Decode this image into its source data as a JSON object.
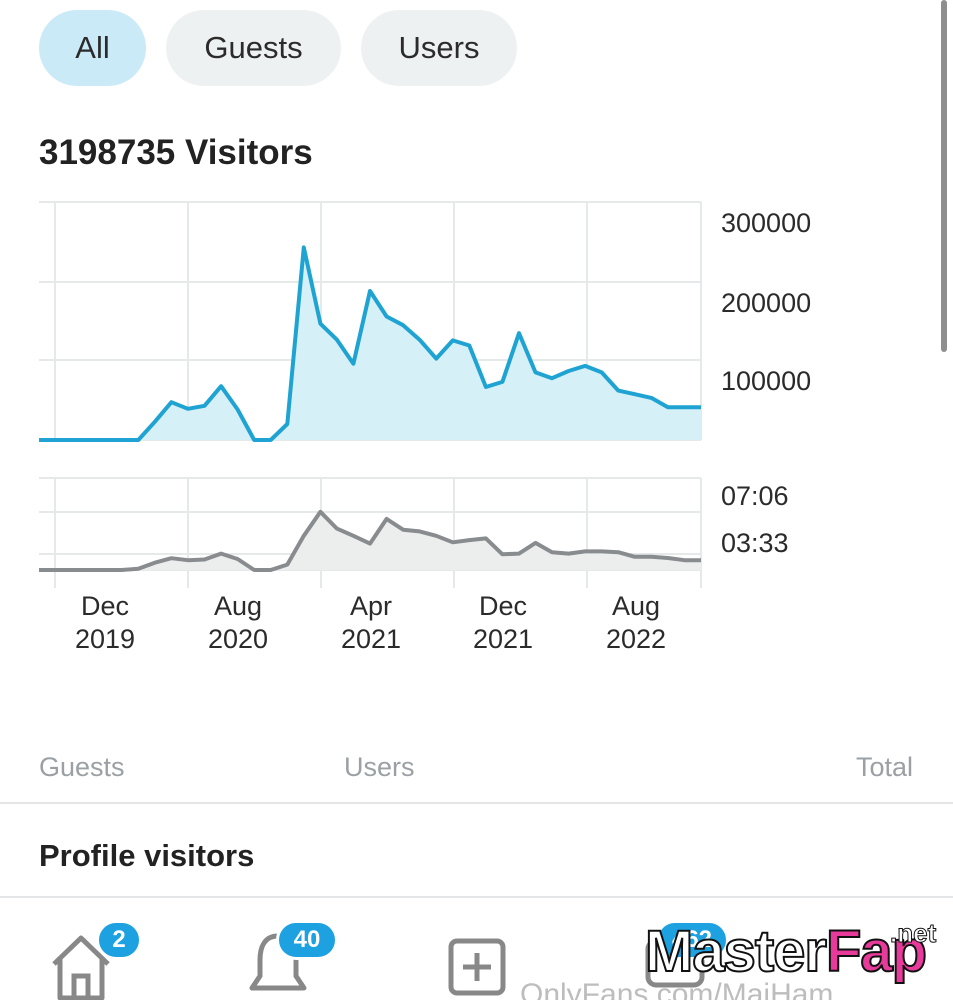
{
  "tabs": [
    {
      "label": "All",
      "active": true
    },
    {
      "label": "Guests",
      "active": false
    },
    {
      "label": "Users",
      "active": false
    }
  ],
  "visitors_title": "3198735 Visitors",
  "chart_data": [
    {
      "type": "area",
      "title": "",
      "xlabel": "",
      "ylabel": "",
      "ylim": [
        0,
        300000
      ],
      "y_ticks": [
        "300000",
        "200000",
        "100000"
      ],
      "x_ticks": [
        {
          "month": "Dec",
          "year": "2019"
        },
        {
          "month": "Aug",
          "year": "2020"
        },
        {
          "month": "Apr",
          "year": "2021"
        },
        {
          "month": "Dec",
          "year": "2021"
        },
        {
          "month": "Aug",
          "year": "2022"
        }
      ],
      "x": [
        "2019-08",
        "2019-09",
        "2019-10",
        "2019-11",
        "2019-12",
        "2020-01",
        "2020-02",
        "2020-03",
        "2020-04",
        "2020-05",
        "2020-06",
        "2020-07",
        "2020-08",
        "2020-09",
        "2020-10",
        "2020-11",
        "2020-12",
        "2021-01",
        "2021-02",
        "2021-03",
        "2021-04",
        "2021-05",
        "2021-06",
        "2021-07",
        "2021-08",
        "2021-09",
        "2021-10",
        "2021-11",
        "2021-12",
        "2022-01",
        "2022-02",
        "2022-03",
        "2022-04",
        "2022-05",
        "2022-06",
        "2022-07",
        "2022-08",
        "2022-09",
        "2022-10",
        "2022-11",
        "2022-12"
      ],
      "values": [
        0,
        0,
        0,
        0,
        0,
        0,
        0,
        25000,
        52000,
        43000,
        47000,
        74000,
        42000,
        0,
        0,
        22000,
        265000,
        160000,
        138000,
        105000,
        205000,
        170000,
        158000,
        138000,
        112000,
        137000,
        130000,
        73000,
        80000,
        147000,
        93000,
        85000,
        95000,
        102000,
        93000,
        68000,
        63000,
        58000,
        45000,
        45000,
        45000
      ],
      "color": "#1fa3d3",
      "fill": "#d6f0f8",
      "grid": true
    },
    {
      "type": "area",
      "title": "",
      "ylim": [
        "00:00",
        "08:52"
      ],
      "y_ticks": [
        "07:06",
        "03:33"
      ],
      "x": [
        "2019-08",
        "2019-09",
        "2019-10",
        "2019-11",
        "2019-12",
        "2020-01",
        "2020-02",
        "2020-03",
        "2020-04",
        "2020-05",
        "2020-06",
        "2020-07",
        "2020-08",
        "2020-09",
        "2020-10",
        "2020-11",
        "2020-12",
        "2021-01",
        "2021-02",
        "2021-03",
        "2021-04",
        "2021-05",
        "2021-06",
        "2021-07",
        "2021-08",
        "2021-09",
        "2021-10",
        "2021-11",
        "2021-12",
        "2022-01",
        "2022-02",
        "2022-03",
        "2022-04",
        "2022-05",
        "2022-06",
        "2022-07",
        "2022-08",
        "2022-09",
        "2022-10",
        "2022-11",
        "2022-12"
      ],
      "values": [
        "00:00",
        "00:00",
        "00:00",
        "00:00",
        "00:00",
        "00:00",
        "00:07",
        "00:43",
        "01:10",
        "00:58",
        "01:02",
        "01:37",
        "01:05",
        "00:00",
        "00:00",
        "00:32",
        "03:22",
        "05:44",
        "04:05",
        "03:22",
        "02:36",
        "05:02",
        "03:58",
        "03:48",
        "03:22",
        "02:44",
        "02:57",
        "03:07",
        "01:33",
        "01:37",
        "02:40",
        "01:45",
        "01:37",
        "01:50",
        "01:50",
        "01:45",
        "01:18",
        "01:18",
        "01:11",
        "00:58",
        "00:58"
      ],
      "color": "#888c8e",
      "fill": "#eceeee",
      "grid": true
    }
  ],
  "legend": {
    "guests": "Guests",
    "users": "Users",
    "total": "Total"
  },
  "section_title": "Profile visitors",
  "nav": {
    "home_badge": "2",
    "notifications_badge": "40",
    "messages_badge": "462"
  },
  "watermark": {
    "master": "Master",
    "fap": "Fap",
    "net": ".net"
  },
  "url_text": "OnlyFans.com/MaiHam"
}
